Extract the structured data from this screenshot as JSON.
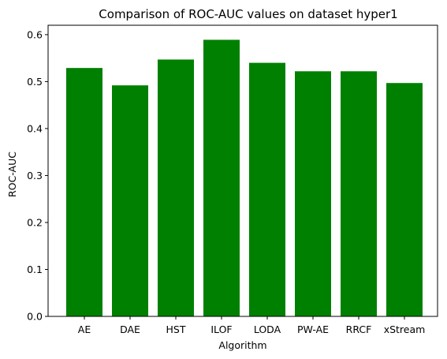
{
  "chart_data": {
    "type": "bar",
    "title": "Comparison of ROC-AUC values on dataset hyper1",
    "xlabel": "Algorithm",
    "ylabel": "ROC-AUC",
    "categories": [
      "AE",
      "DAE",
      "HST",
      "ILOF",
      "LODA",
      "PW-AE",
      "RRCF",
      "xStream"
    ],
    "values": [
      0.529,
      0.492,
      0.547,
      0.589,
      0.54,
      0.522,
      0.522,
      0.497
    ],
    "ylim": [
      0,
      0.62
    ],
    "yticks": [
      0.0,
      0.1,
      0.2,
      0.3,
      0.4,
      0.5,
      0.6
    ],
    "ytick_labels": [
      "0.0",
      "0.1",
      "0.2",
      "0.3",
      "0.4",
      "0.5",
      "0.6"
    ],
    "bar_color": "#008000",
    "grid": false,
    "legend": "none"
  }
}
